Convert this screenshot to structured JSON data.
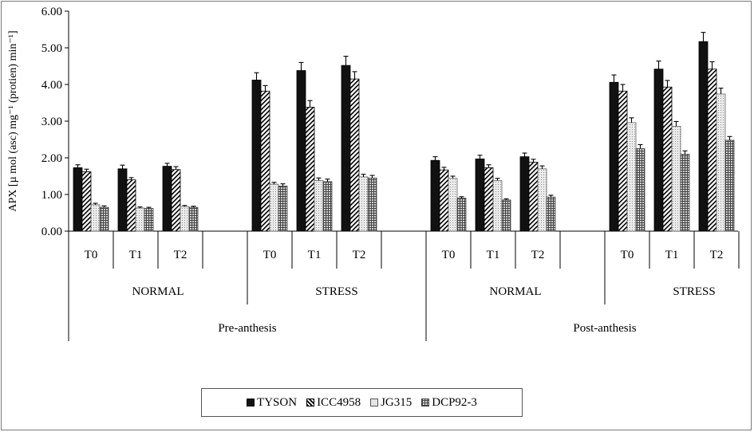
{
  "chart_data": {
    "type": "bar",
    "title": "",
    "ylabel": "APX [µ mol (asc) mg⁻¹ (protien) min⁻¹]",
    "ylim": [
      0,
      6
    ],
    "yticks": [
      "0.00",
      "1.00",
      "2.00",
      "3.00",
      "4.00",
      "5.00",
      "6.00"
    ],
    "grid": false,
    "legend_position": "bottom-center",
    "series": [
      {
        "name": "TYSON",
        "color": "#111111"
      },
      {
        "name": "ICC4958",
        "color": "#ffffff"
      },
      {
        "name": "JG315",
        "color": "#e6e6e6"
      },
      {
        "name": "DCP92-3",
        "color": "#bbbbbb"
      }
    ],
    "periods": [
      {
        "label": "Pre-anthesis",
        "conditions": [
          {
            "label": "NORMAL",
            "times": [
              {
                "label": "T0",
                "values": [
                  1.73,
                  1.62,
                  0.72,
                  0.65
                ],
                "errors": [
                  0.08,
                  0.07,
                  0.04,
                  0.04
                ]
              },
              {
                "label": "T1",
                "values": [
                  1.7,
                  1.4,
                  0.63,
                  0.62
                ],
                "errors": [
                  0.1,
                  0.06,
                  0.03,
                  0.03
                ]
              },
              {
                "label": "T2",
                "values": [
                  1.77,
                  1.68,
                  0.67,
                  0.65
                ],
                "errors": [
                  0.08,
                  0.08,
                  0.03,
                  0.03
                ]
              }
            ]
          },
          {
            "label": "STRESS",
            "times": [
              {
                "label": "T0",
                "values": [
                  4.12,
                  3.82,
                  1.28,
                  1.23
                ],
                "errors": [
                  0.2,
                  0.15,
                  0.05,
                  0.06
                ]
              },
              {
                "label": "T1",
                "values": [
                  4.38,
                  3.38,
                  1.38,
                  1.35
                ],
                "errors": [
                  0.22,
                  0.18,
                  0.07,
                  0.07
                ]
              },
              {
                "label": "T2",
                "values": [
                  4.52,
                  4.15,
                  1.48,
                  1.45
                ],
                "errors": [
                  0.25,
                  0.2,
                  0.07,
                  0.07
                ]
              }
            ]
          }
        ]
      },
      {
        "label": "Post-anthesis",
        "conditions": [
          {
            "label": "NORMAL",
            "times": [
              {
                "label": "T0",
                "values": [
                  1.93,
                  1.67,
                  1.44,
                  0.9
                ],
                "errors": [
                  0.1,
                  0.07,
                  0.06,
                  0.04
                ]
              },
              {
                "label": "T1",
                "values": [
                  1.97,
                  1.73,
                  1.38,
                  0.85
                ],
                "errors": [
                  0.1,
                  0.08,
                  0.06,
                  0.03
                ]
              },
              {
                "label": "T2",
                "values": [
                  2.03,
                  1.88,
                  1.7,
                  0.93
                ],
                "errors": [
                  0.1,
                  0.08,
                  0.08,
                  0.05
                ]
              }
            ]
          },
          {
            "label": "STRESS",
            "times": [
              {
                "label": "T0",
                "values": [
                  4.06,
                  3.82,
                  2.96,
                  2.25
                ],
                "errors": [
                  0.2,
                  0.18,
                  0.13,
                  0.11
                ]
              },
              {
                "label": "T1",
                "values": [
                  4.42,
                  3.93,
                  2.86,
                  2.1
                ],
                "errors": [
                  0.22,
                  0.18,
                  0.13,
                  0.09
                ]
              },
              {
                "label": "T2",
                "values": [
                  5.17,
                  4.42,
                  3.74,
                  2.48
                ],
                "errors": [
                  0.25,
                  0.2,
                  0.16,
                  0.1
                ]
              }
            ]
          }
        ]
      }
    ]
  }
}
